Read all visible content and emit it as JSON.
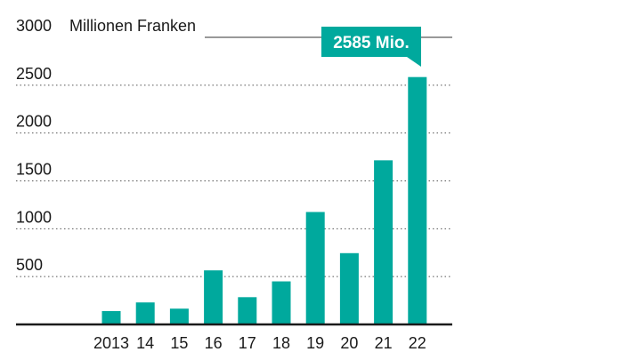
{
  "chart_data": {
    "type": "bar",
    "title": "",
    "unit_label": "Millionen Franken",
    "categories": [
      "2013",
      "14",
      "15",
      "16",
      "17",
      "18",
      "19",
      "20",
      "21",
      "22"
    ],
    "values": [
      140,
      230,
      165,
      565,
      285,
      450,
      1175,
      745,
      1715,
      2585
    ],
    "ylim": [
      0,
      3000
    ],
    "yticks": [
      500,
      1000,
      1500,
      2000,
      2500,
      3000
    ],
    "grid": "dotted horizontal",
    "bar_color": "#00a99d",
    "callout": {
      "text": "2585 Mio.",
      "category": "22"
    }
  }
}
